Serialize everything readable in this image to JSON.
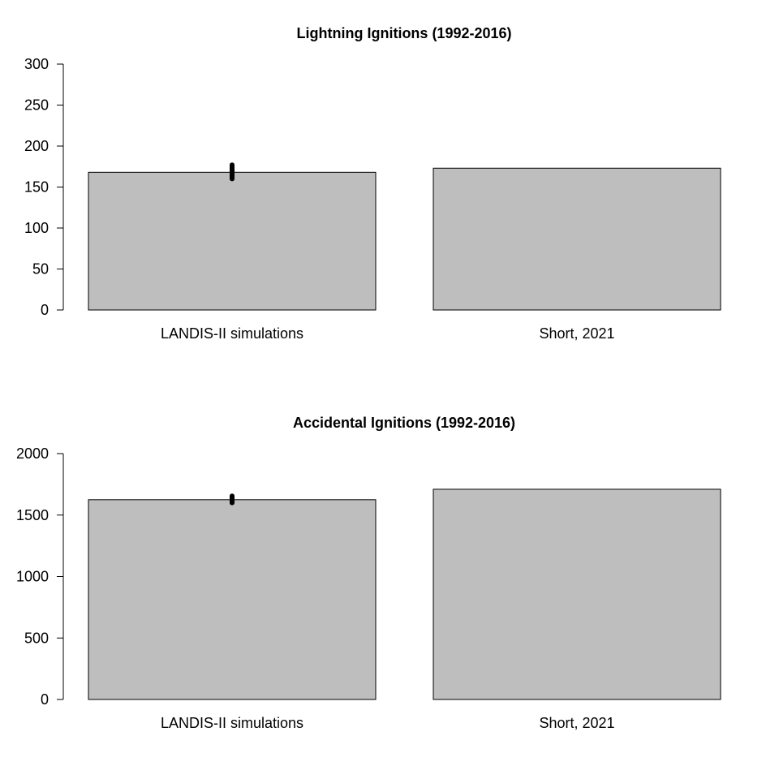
{
  "chart_data": [
    {
      "type": "bar",
      "title": "Lightning Ignitions (1992-2016)",
      "categories": [
        "LANDIS-II simulations",
        "Short, 2021"
      ],
      "values": [
        168,
        173
      ],
      "error_range": [
        [
          160,
          177
        ],
        null
      ],
      "ylim": [
        0,
        300
      ],
      "yticks": [
        0,
        50,
        100,
        150,
        200,
        250,
        300
      ],
      "grid": false,
      "legend": "none",
      "bar_color": "#bebebe",
      "error_bar_color": "#000000"
    },
    {
      "type": "bar",
      "title": "Accidental Ignitions (1992-2016)",
      "categories": [
        "LANDIS-II simulations",
        "Short, 2021"
      ],
      "values": [
        1625,
        1710
      ],
      "error_range": [
        [
          1600,
          1655
        ],
        null
      ],
      "ylim": [
        0,
        2000
      ],
      "yticks": [
        0,
        500,
        1000,
        1500,
        2000
      ],
      "grid": false,
      "legend": "none",
      "bar_color": "#bebebe",
      "error_bar_color": "#000000"
    }
  ]
}
